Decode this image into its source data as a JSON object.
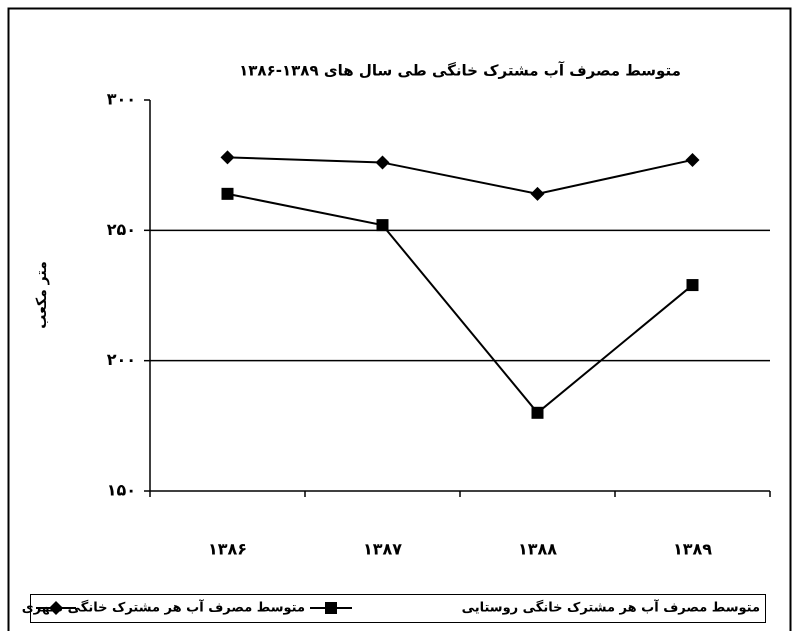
{
  "chart_data": {
    "type": "line",
    "title": "متوسط مصرف آب مشترک خانگی طی سال های ۱۳۸۹-۱۳۸۶",
    "y_label": "متر مکعب",
    "categories": [
      "۱۳۸۶",
      "۱۳۸۷",
      "۱۳۸۸",
      "۱۳۸۹"
    ],
    "series": [
      {
        "name": "متوسط مصرف آب هر مشترک خانگی شهری",
        "color": "#000000",
        "marker": "diamond",
        "values": [
          278,
          276,
          264,
          277
        ]
      },
      {
        "name": "متوسط مصرف آب هر مشترک خانگی روستایی",
        "color": "#000000",
        "marker": "square",
        "values": [
          264,
          252,
          180,
          229
        ]
      }
    ],
    "ylim": [
      150,
      300
    ],
    "yticks": [
      {
        "value": 150,
        "label": "۱۵۰"
      },
      {
        "value": 200,
        "label": "۲۰۰"
      },
      {
        "value": 250,
        "label": "۲۵۰"
      },
      {
        "value": 300,
        "label": "۳۰۰"
      }
    ],
    "grid": true,
    "legend": "bottom"
  }
}
